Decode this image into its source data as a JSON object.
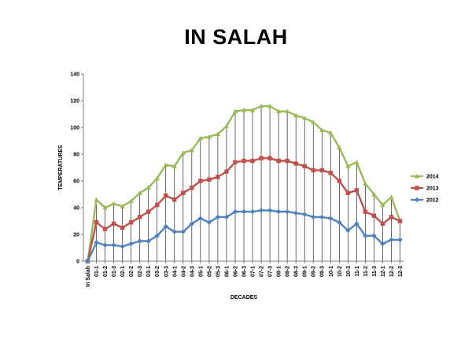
{
  "chart_data": {
    "type": "line",
    "title": "IN SALAH",
    "xlabel": "DECADES",
    "ylabel": "TEMPERATURES",
    "ylim": [
      0,
      140
    ],
    "yticks": [
      0,
      20,
      40,
      60,
      80,
      100,
      120,
      140
    ],
    "grid": "vertical drop lines at each category",
    "legend_position": "right",
    "categories": [
      "In Salah",
      "01-1",
      "01-2",
      "01-3",
      "02-1",
      "02-2",
      "02-3",
      "03-1",
      "03-2",
      "03-3",
      "04-1",
      "04-2",
      "04-3",
      "05-1",
      "05-2",
      "05-3",
      "06-1",
      "06-2",
      "06-3",
      "07-1",
      "07-2",
      "07-3",
      "08-1",
      "08-2",
      "08-3",
      "09-1",
      "09-2",
      "09-3",
      "10-1",
      "10-2",
      "10-3",
      "11-1",
      "11-2",
      "11-3",
      "12-1",
      "12-2",
      "12-3"
    ],
    "series": [
      {
        "name": "2014",
        "color": "#9BBB59",
        "marker": "triangle",
        "values": [
          0,
          46,
          40,
          43,
          41,
          45,
          51,
          55,
          62,
          72,
          71,
          81,
          83,
          92,
          93,
          95,
          101,
          112,
          113,
          113,
          116,
          116,
          112,
          112,
          109,
          107,
          104,
          98,
          96,
          85,
          71,
          74,
          58,
          50,
          42,
          48,
          30
        ]
      },
      {
        "name": "2013",
        "color": "#C0504D",
        "marker": "square",
        "values": [
          0,
          29,
          24,
          28,
          25,
          29,
          33,
          37,
          42,
          49,
          46,
          51,
          55,
          60,
          61,
          63,
          67,
          74,
          75,
          75,
          77,
          77,
          75,
          75,
          73,
          71,
          68,
          68,
          66,
          60,
          51,
          53,
          37,
          34,
          28,
          33,
          30
        ]
      },
      {
        "name": "2012",
        "color": "#4F81BD",
        "marker": "diamond",
        "values": [
          0,
          14,
          12,
          12,
          11,
          13,
          15,
          15,
          19,
          26,
          22,
          22,
          28,
          32,
          29,
          33,
          33,
          37,
          37,
          37,
          38,
          38,
          37,
          37,
          36,
          35,
          33,
          33,
          32,
          29,
          23,
          28,
          19,
          19,
          13,
          16,
          16
        ]
      }
    ]
  }
}
